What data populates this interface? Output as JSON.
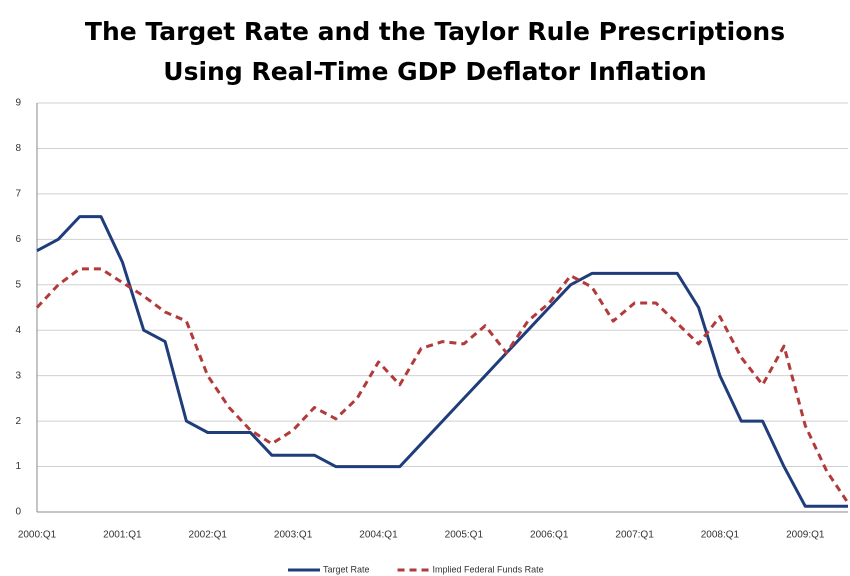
{
  "chart_data": {
    "type": "line",
    "title": [
      "The Target Rate and the Taylor Rule Prescriptions",
      "Using Real-Time GDP Deflator Inflation"
    ],
    "categories": [
      "2000:Q1",
      null,
      null,
      null,
      "2001:Q1",
      null,
      null,
      null,
      "2002:Q1",
      null,
      null,
      null,
      "2003:Q1",
      null,
      null,
      null,
      "2004:Q1",
      null,
      null,
      null,
      "2005:Q1",
      null,
      null,
      null,
      "2006:Q1",
      null,
      null,
      null,
      "2007:Q1",
      null,
      null,
      null,
      "2008:Q1",
      null,
      null,
      null,
      "2009:Q1",
      null,
      null
    ],
    "series": [
      {
        "name": "Target Rate",
        "color": "#1f3d7a",
        "dash": false,
        "values": [
          5.75,
          6.0,
          6.5,
          6.5,
          5.5,
          4.0,
          3.75,
          2.0,
          1.75,
          1.75,
          1.75,
          1.25,
          1.25,
          1.25,
          1.0,
          1.0,
          1.0,
          1.0,
          1.5,
          2.0,
          2.5,
          3.0,
          3.5,
          4.0,
          4.5,
          5.0,
          5.25,
          5.25,
          5.25,
          5.25,
          5.25,
          4.5,
          3.0,
          2.0,
          2.0,
          1.0,
          0.125,
          0.125,
          0.125
        ]
      },
      {
        "name": "Implied Federal Funds Rate",
        "color": "#b23a3a",
        "dash": true,
        "values": [
          4.5,
          5.0,
          5.35,
          5.35,
          5.05,
          4.75,
          4.4,
          4.2,
          3.0,
          2.3,
          1.8,
          1.5,
          1.8,
          2.3,
          2.05,
          2.5,
          3.3,
          2.8,
          3.6,
          3.75,
          3.7,
          4.1,
          3.5,
          4.2,
          4.6,
          5.2,
          4.95,
          4.2,
          4.6,
          4.6,
          4.15,
          3.7,
          4.3,
          3.4,
          2.8,
          3.65,
          1.9,
          0.9,
          0.2
        ]
      }
    ],
    "ylim": [
      0,
      9
    ],
    "yticks": [
      0,
      1,
      2,
      3,
      4,
      5,
      6,
      7,
      8,
      9
    ],
    "grid": true
  }
}
